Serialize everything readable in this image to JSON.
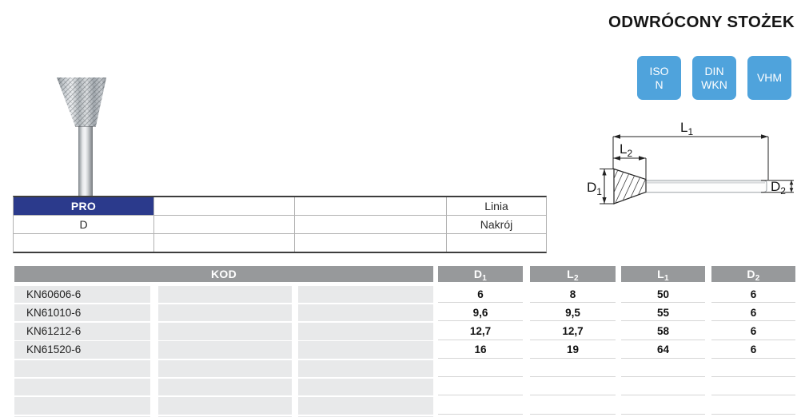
{
  "page": {
    "title": "ODWRÓCONY STOŻEK"
  },
  "badges": [
    {
      "line1": "ISO",
      "line2": "N"
    },
    {
      "line1": "DIN",
      "line2": "WKN"
    },
    {
      "line1": "VHM",
      "line2": ""
    }
  ],
  "diagram": {
    "l1": {
      "base": "L",
      "sub": "1"
    },
    "l2": {
      "base": "L",
      "sub": "2"
    },
    "d1": {
      "base": "D",
      "sub": "1"
    },
    "d2": {
      "base": "D",
      "sub": "2"
    }
  },
  "spec_table": {
    "rows": [
      [
        "PRO",
        "",
        "",
        "Linia"
      ],
      [
        "D",
        "",
        "",
        "Nakrój"
      ],
      [
        "",
        "",
        "",
        ""
      ]
    ]
  },
  "main_table": {
    "kod_header": "KOD",
    "dim_headers": [
      {
        "base": "D",
        "sub": "1"
      },
      {
        "base": "L",
        "sub": "2"
      },
      {
        "base": "L",
        "sub": "1"
      },
      {
        "base": "D",
        "sub": "2"
      }
    ],
    "rows": [
      {
        "kod": "KN60606-6",
        "d1": "6",
        "l2": "8",
        "l1": "50",
        "d2": "6"
      },
      {
        "kod": "KN61010-6",
        "d1": "9,6",
        "l2": "9,5",
        "l1": "55",
        "d2": "6"
      },
      {
        "kod": "KN61212-6",
        "d1": "12,7",
        "l2": "12,7",
        "l1": "58",
        "d2": "6"
      },
      {
        "kod": "KN61520-6",
        "d1": "16",
        "l2": "19",
        "l1": "64",
        "d2": "6"
      },
      {
        "kod": "",
        "d1": "",
        "l2": "",
        "l1": "",
        "d2": ""
      },
      {
        "kod": "",
        "d1": "",
        "l2": "",
        "l1": "",
        "d2": ""
      },
      {
        "kod": "",
        "d1": "",
        "l2": "",
        "l1": "",
        "d2": ""
      },
      {
        "kod": "",
        "d1": "",
        "l2": "",
        "l1": "",
        "d2": ""
      }
    ]
  },
  "colors": {
    "badge-blue": "#4fa3dc",
    "navy": "#2b3a8c",
    "header-gray": "#97999b",
    "row-gray": "#e8e9ea"
  }
}
